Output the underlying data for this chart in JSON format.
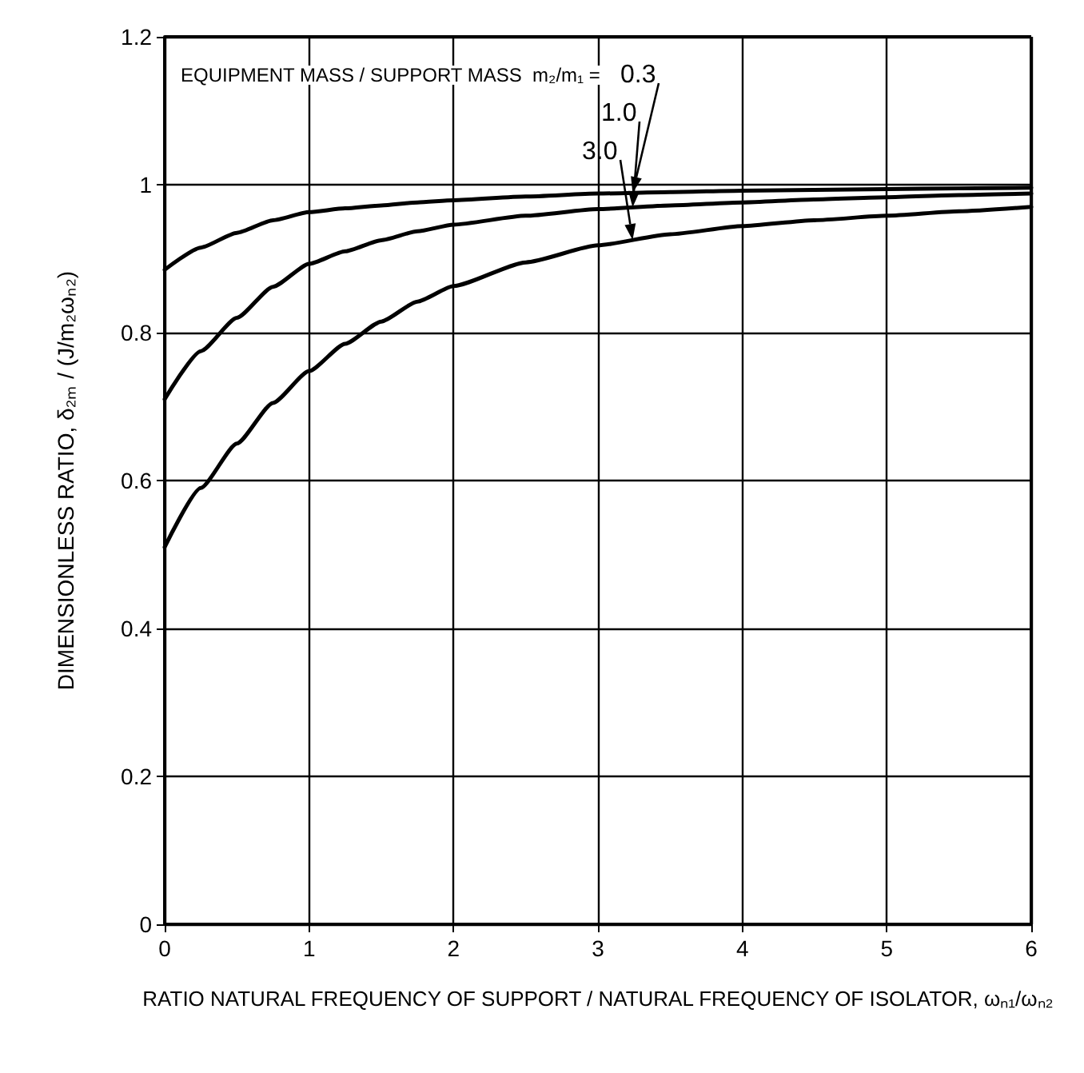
{
  "chart_data": {
    "type": "line",
    "xlabel": "RATIO NATURAL FREQUENCY OF SUPPORT / NATURAL FREQUENCY OF ISOLATOR, ωₙ₁/ωₙ₂",
    "ylabel": "DIMENSIONLESS RATIO, δ₂ₘ / (J/m₂ωₙ₂)",
    "legend_title": "EQUIPMENT MASS / SUPPORT MASS  m₂/m₁ =",
    "x": [
      0,
      0.25,
      0.5,
      0.75,
      1,
      1.25,
      1.5,
      1.75,
      2,
      2.5,
      3,
      3.5,
      4,
      4.5,
      5,
      5.5,
      6
    ],
    "series": [
      {
        "name": "0.3",
        "color": "#000000",
        "values": [
          0.885,
          0.915,
          0.935,
          0.952,
          0.963,
          0.968,
          0.972,
          0.976,
          0.979,
          0.984,
          0.988,
          0.99,
          0.992,
          0.993,
          0.994,
          0.995,
          0.996
        ]
      },
      {
        "name": "1.0",
        "color": "#000000",
        "values": [
          0.71,
          0.775,
          0.82,
          0.862,
          0.893,
          0.91,
          0.925,
          0.937,
          0.946,
          0.958,
          0.967,
          0.972,
          0.976,
          0.98,
          0.983,
          0.986,
          0.988
        ]
      },
      {
        "name": "3.0",
        "color": "#000000",
        "values": [
          0.51,
          0.59,
          0.65,
          0.705,
          0.748,
          0.785,
          0.815,
          0.842,
          0.863,
          0.895,
          0.918,
          0.933,
          0.944,
          0.952,
          0.958,
          0.964,
          0.97
        ]
      }
    ],
    "xlim": [
      0,
      6
    ],
    "xticks": [
      0,
      1,
      2,
      3,
      4,
      5,
      6
    ],
    "ylim": [
      0,
      1.2
    ],
    "yticks": [
      0,
      0.2,
      0.4,
      0.6,
      0.8,
      1.0,
      1.2
    ],
    "grid": true,
    "marker": "none",
    "line_style": "solid"
  }
}
